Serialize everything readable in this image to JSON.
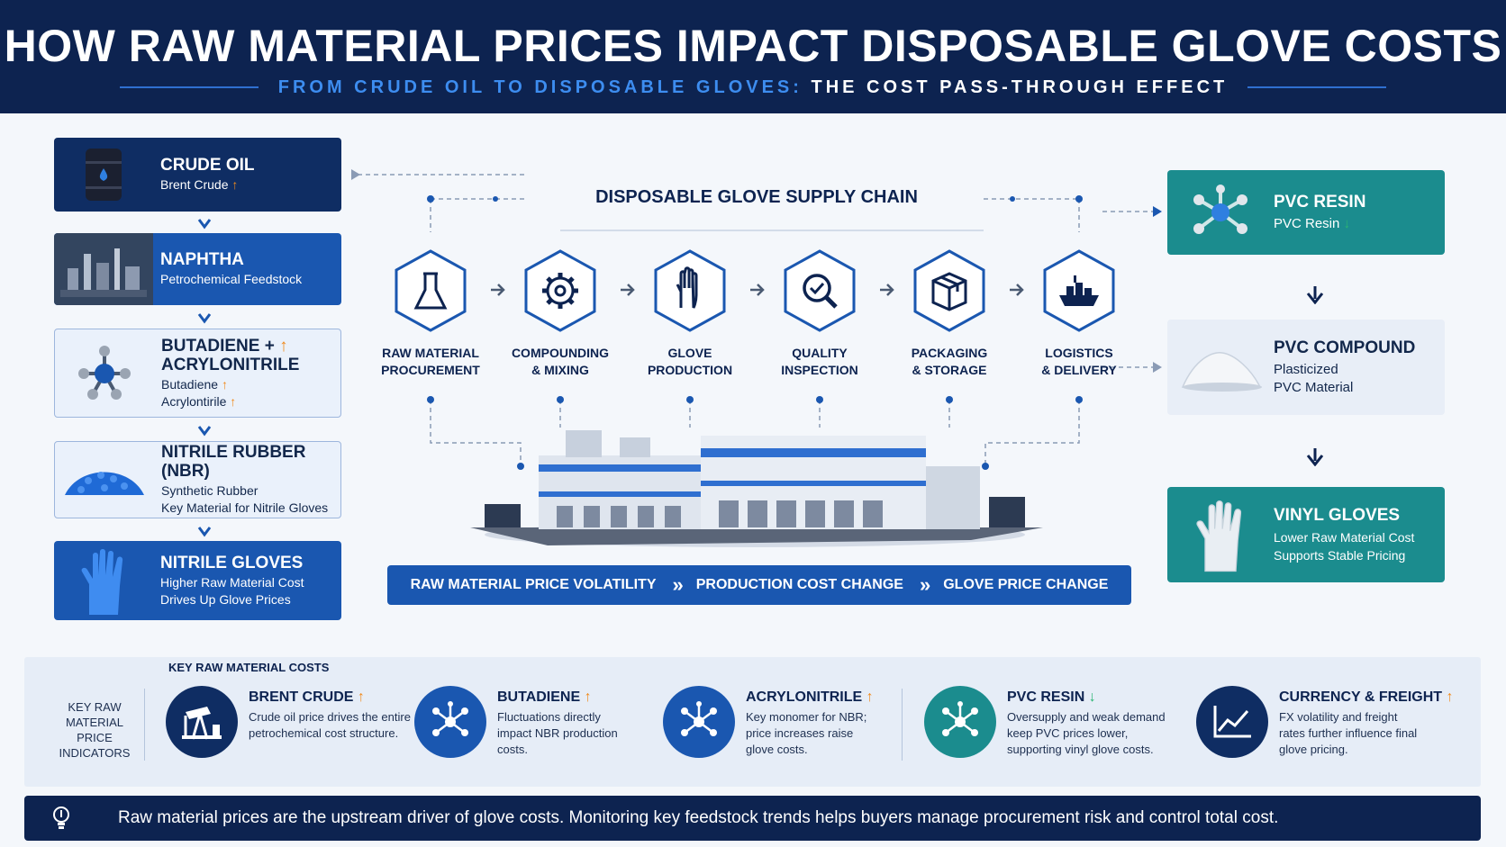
{
  "header": {
    "title": "HOW RAW MATERIAL PRICES IMPACT DISPOSABLE GLOVE COSTS",
    "subtitle_blue": "FROM CRUDE OIL TO DISPOSABLE GLOVES:",
    "subtitle_white": "THE COST PASS-THROUGH EFFECT"
  },
  "left_chain": [
    {
      "title": "CRUDE OIL",
      "line1": "Brent Crude",
      "trend1": "↑"
    },
    {
      "title": "NAPHTHA",
      "line1": "Petrochemical Feedstock"
    },
    {
      "title": "BUTADIENE +",
      "title2": "ACRYLONITRILE",
      "trend_title": "↑",
      "line1": "Butadiene",
      "trend1": "↑",
      "line2": "Acrylontirile",
      "trend2": "↑"
    },
    {
      "title": "NITRILE RUBBER (NBR)",
      "line1": "Synthetic Rubber",
      "line2": "Key Material for Nitrile Gloves"
    },
    {
      "title": "NITRILE GLOVES",
      "line1": "Higher Raw Material Cost",
      "line2": "Drives Up Glove Prices"
    }
  ],
  "supply_chain": {
    "title": "DISPOSABLE GLOVE SUPPLY CHAIN",
    "steps": [
      {
        "l1": "RAW MATERIAL",
        "l2": "PROCUREMENT",
        "icon": "flask-icon"
      },
      {
        "l1": "COMPOUNDING",
        "l2": "& MIXING",
        "icon": "gear-icon"
      },
      {
        "l1": "GLOVE",
        "l2": "PRODUCTION",
        "icon": "glove-icon"
      },
      {
        "l1": "QUALITY",
        "l2": "INSPECTION",
        "icon": "magnifier-check-icon"
      },
      {
        "l1": "PACKAGING",
        "l2": "& STORAGE",
        "icon": "box-icon"
      },
      {
        "l1": "LOGISTICS",
        "l2": "& DELIVERY",
        "icon": "ship-icon"
      }
    ]
  },
  "volatility_bar": {
    "item1": "RAW MATERIAL PRICE VOLATILITY",
    "item2": "PRODUCTION COST CHANGE",
    "item3": "GLOVE PRICE CHANGE",
    "sep": "»"
  },
  "right_chain": [
    {
      "title": "PVC RESIN",
      "line1": "PVC Resin",
      "trend1": "↓"
    },
    {
      "title": "PVC COMPOUND",
      "line1": "Plasticized",
      "line2": "PVC Material"
    },
    {
      "title": "VINYL GLOVES",
      "line1": "Lower Raw Material Cost",
      "line2": "Supports Stable Pricing"
    }
  ],
  "indicators": {
    "heading": "KEY RAW MATERIAL COSTS",
    "side_l1": "KEY RAW",
    "side_l2": "MATERIAL PRICE",
    "side_l3": "INDICATORS",
    "items": [
      {
        "title": "BRENT CRUDE",
        "trend": "↑",
        "text": "Crude oil price drives the entire petrochemical cost structure.",
        "color": "#0f2d63",
        "icon": "oil-pump-icon"
      },
      {
        "title": "BUTADIENE",
        "trend": "↑",
        "text": "Fluctuations directly impact NBR production costs.",
        "color": "#1a57b0",
        "icon": "molecule-icon"
      },
      {
        "title": "ACRYLONITRILE",
        "trend": "↑",
        "text": "Key monomer for NBR; price increases raise glove costs.",
        "color": "#1a57b0",
        "icon": "molecule-icon"
      },
      {
        "title": "PVC RESIN",
        "trend": "↓",
        "text": "Oversupply and weak demand keep PVC prices lower, supporting vinyl glove costs.",
        "color": "#1b8c8e",
        "icon": "molecule-icon"
      },
      {
        "title": "CURRENCY & FREIGHT",
        "trend": "↑",
        "text": "FX volatility and freight rates further influence final glove pricing.",
        "color": "#0f2d63",
        "icon": "line-chart-icon"
      }
    ]
  },
  "footer": {
    "text": "Raw material prices are the upstream driver of glove costs. Monitoring key feedstock trends helps buyers manage procurement risk and control total cost."
  },
  "colors": {
    "navy": "#0d2350",
    "blue": "#1a57b0",
    "teal": "#1b8c8e",
    "up": "#f08a1c",
    "down": "#2bb673"
  }
}
